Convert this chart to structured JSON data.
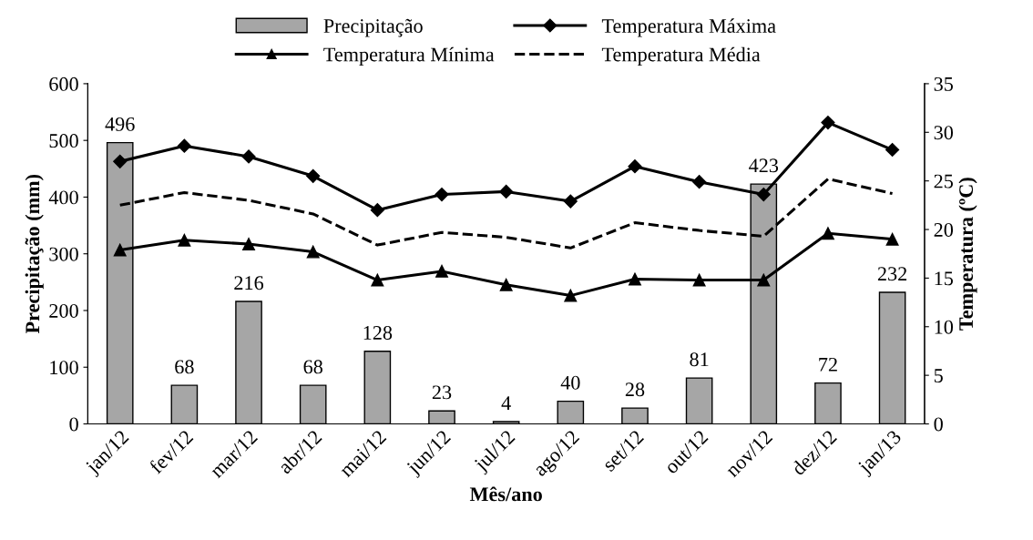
{
  "chart_data": {
    "type": "bar",
    "xlabel": "Mês/ano",
    "ylabel": "Precipitação (mm)",
    "y2label": "Temperatura (ºC)",
    "categories": [
      "jan/12",
      "fev/12",
      "mar/12",
      "abr/12",
      "mai/12",
      "jun/12",
      "jul/12",
      "ago/12",
      "set/12",
      "out/12",
      "nov/12",
      "dez/12",
      "jan/13"
    ],
    "series": [
      {
        "name": "Precipitação",
        "color": "#a6a6a6",
        "data_labels": true,
        "values": [
          496,
          68,
          216,
          68,
          128,
          23,
          4,
          40,
          28,
          81,
          423,
          72,
          232
        ]
      },
      {
        "name": "Temperatura Máxima",
        "type": "line",
        "axis": "y2",
        "color": "#000000",
        "marker": "diamond",
        "line_style": "solid",
        "values": [
          27.0,
          28.6,
          27.5,
          25.5,
          22.0,
          23.6,
          23.9,
          22.9,
          26.5,
          24.9,
          23.6,
          31.0,
          28.2
        ]
      },
      {
        "name": "Temperatura Mínima",
        "type": "line",
        "axis": "y2",
        "color": "#000000",
        "marker": "triangle",
        "line_style": "solid",
        "values": [
          17.9,
          18.9,
          18.5,
          17.7,
          14.8,
          15.7,
          14.3,
          13.2,
          14.9,
          14.8,
          14.8,
          19.6,
          19.0
        ]
      },
      {
        "name": "Temperatura Média",
        "type": "line",
        "axis": "y2",
        "color": "#000000",
        "marker": "none",
        "line_style": "dashed",
        "values": [
          22.5,
          23.8,
          23.0,
          21.6,
          18.4,
          19.7,
          19.2,
          18.1,
          20.7,
          19.9,
          19.3,
          25.2,
          23.7
        ]
      }
    ],
    "ylim": [
      0,
      600
    ],
    "yticks": [
      0,
      100,
      200,
      300,
      400,
      500,
      600
    ],
    "y2lim": [
      0,
      35
    ],
    "y2ticks": [
      0,
      5,
      10,
      15,
      20,
      25,
      30,
      35
    ],
    "grid": false,
    "legend": "top"
  }
}
